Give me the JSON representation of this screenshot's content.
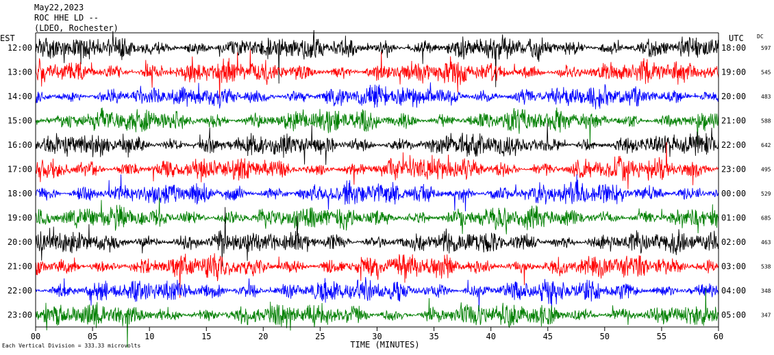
{
  "header": {
    "date": "May22,2023",
    "station": "ROC HHE LD --",
    "location": "(LDEO, Rochester)"
  },
  "left_axis_label": "EST",
  "right_axis_label": "UTC",
  "dc_label": "DC",
  "xlabel": "TIME (MINUTES)",
  "footer": "Each Vertical Division =  333.33 microvolts",
  "colors": {
    "black": "#000000",
    "red": "#ff0000",
    "blue": "#0000ff",
    "green": "#007f00"
  },
  "chart_data": {
    "type": "line",
    "title": "ROC HHE LD --",
    "xlabel": "TIME (MINUTES)",
    "xlim": [
      0,
      60
    ],
    "x_ticks": [
      "00",
      "05",
      "10",
      "15",
      "20",
      "25",
      "30",
      "35",
      "40",
      "45",
      "50",
      "55",
      "60"
    ],
    "series": [
      {
        "local_time": "12:00",
        "utc_time": "18:00",
        "dc": "597",
        "color": "black"
      },
      {
        "local_time": "13:00",
        "utc_time": "19:00",
        "dc": "545",
        "color": "red"
      },
      {
        "local_time": "14:00",
        "utc_time": "20:00",
        "dc": "483",
        "color": "blue"
      },
      {
        "local_time": "15:00",
        "utc_time": "21:00",
        "dc": "588",
        "color": "green"
      },
      {
        "local_time": "16:00",
        "utc_time": "22:00",
        "dc": "642",
        "color": "black"
      },
      {
        "local_time": "17:00",
        "utc_time": "23:00",
        "dc": "495",
        "color": "red"
      },
      {
        "local_time": "18:00",
        "utc_time": "00:00",
        "dc": "529",
        "color": "blue"
      },
      {
        "local_time": "19:00",
        "utc_time": "01:00",
        "dc": "685",
        "color": "green"
      },
      {
        "local_time": "20:00",
        "utc_time": "02:00",
        "dc": "463",
        "color": "black"
      },
      {
        "local_time": "21:00",
        "utc_time": "03:00",
        "dc": "538",
        "color": "red"
      },
      {
        "local_time": "22:00",
        "utc_time": "04:00",
        "dc": "348",
        "color": "blue"
      },
      {
        "local_time": "23:00",
        "utc_time": "05:00",
        "dc": "347",
        "color": "green"
      }
    ]
  }
}
